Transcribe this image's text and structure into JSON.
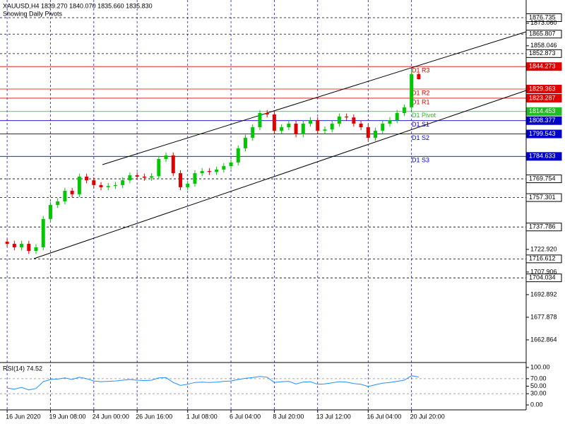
{
  "chart_data": {
    "type": "candlestick",
    "symbol": "XAUUSD,H4",
    "quote": "1839.270 1840.070 1835.660 1835.830",
    "subtitle": "Showing Daily Pivots",
    "categories": [
      "16 Jun 2020",
      null,
      null,
      null,
      null,
      null,
      "19 Jun 08:00",
      null,
      null,
      null,
      null,
      null,
      "24 Jun 00:00",
      null,
      null,
      null,
      null,
      null,
      "26 Jun 16:00",
      null,
      null,
      null,
      null,
      null,
      null,
      "1 Jul 08:00",
      null,
      null,
      null,
      null,
      null,
      "6 Jul 04:00",
      null,
      null,
      null,
      null,
      null,
      "8 Jul 20:00",
      null,
      null,
      null,
      null,
      null,
      "13 Jul 12:00",
      null,
      null,
      null,
      null,
      null,
      null,
      "16 Jul 04:00",
      null,
      null,
      null,
      null,
      null,
      "20 Jul 20:00",
      null
    ],
    "ohlc": [
      [
        1728.0,
        1730.0,
        1724.6,
        1726.6
      ],
      [
        1726.6,
        1728.6,
        1722.3,
        1724.3
      ],
      [
        1724.3,
        1728.6,
        1722.3,
        1726.6
      ],
      [
        1726.6,
        1728.6,
        1719.9,
        1721.9
      ],
      [
        1721.9,
        1726.3,
        1719.9,
        1724.3
      ],
      [
        1724.3,
        1745.1,
        1722.3,
        1743.1
      ],
      [
        1743.1,
        1754.4,
        1741.1,
        1752.4
      ],
      [
        1752.4,
        1756.8,
        1750.4,
        1754.8
      ],
      [
        1754.8,
        1763.8,
        1752.8,
        1761.8
      ],
      [
        1761.8,
        1763.8,
        1757.5,
        1759.5
      ],
      [
        1759.5,
        1773.2,
        1757.5,
        1771.2
      ],
      [
        1771.2,
        1773.2,
        1766.8,
        1768.8
      ],
      [
        1768.8,
        1770.8,
        1763.6,
        1765.6
      ],
      [
        1765.6,
        1767.6,
        1762.2,
        1764.2
      ],
      [
        1764.2,
        1767.0,
        1762.2,
        1765.0
      ],
      [
        1765.0,
        1767.6,
        1763.0,
        1765.6
      ],
      [
        1765.6,
        1770.8,
        1763.6,
        1768.8
      ],
      [
        1768.8,
        1774.1,
        1766.8,
        1772.1
      ],
      [
        1772.1,
        1774.1,
        1769.2,
        1771.2
      ],
      [
        1771.2,
        1773.2,
        1768.5,
        1770.5
      ],
      [
        1770.5,
        1773.5,
        1768.5,
        1771.5
      ],
      [
        1771.5,
        1784.9,
        1769.5,
        1782.9
      ],
      [
        1782.9,
        1787.3,
        1780.9,
        1785.3
      ],
      [
        1785.3,
        1787.3,
        1771.5,
        1773.5
      ],
      [
        1773.5,
        1775.5,
        1762.2,
        1764.2
      ],
      [
        1764.2,
        1768.5,
        1762.2,
        1766.5
      ],
      [
        1766.5,
        1775.5,
        1764.5,
        1773.5
      ],
      [
        1773.5,
        1776.9,
        1771.5,
        1774.9
      ],
      [
        1774.9,
        1776.9,
        1772.3,
        1774.3
      ],
      [
        1774.3,
        1777.9,
        1772.3,
        1775.9
      ],
      [
        1775.9,
        1780.2,
        1773.9,
        1778.2
      ],
      [
        1778.2,
        1782.6,
        1776.2,
        1780.6
      ],
      [
        1780.6,
        1792.0,
        1778.6,
        1790.0
      ],
      [
        1790.0,
        1799.0,
        1788.0,
        1797.0
      ],
      [
        1797.0,
        1806.0,
        1795.0,
        1804.0
      ],
      [
        1804.0,
        1815.4,
        1802.0,
        1813.4
      ],
      [
        1813.4,
        1815.4,
        1810.5,
        1812.5
      ],
      [
        1812.5,
        1814.5,
        1799.7,
        1801.7
      ],
      [
        1801.7,
        1806.0,
        1799.7,
        1804.0
      ],
      [
        1804.0,
        1808.4,
        1802.0,
        1806.4
      ],
      [
        1806.4,
        1808.4,
        1797.3,
        1799.3
      ],
      [
        1799.3,
        1808.4,
        1797.3,
        1806.4
      ],
      [
        1806.4,
        1810.7,
        1804.4,
        1808.7
      ],
      [
        1808.7,
        1810.7,
        1799.7,
        1801.7
      ],
      [
        1801.7,
        1804.5,
        1799.7,
        1802.5
      ],
      [
        1802.5,
        1808.4,
        1800.5,
        1806.4
      ],
      [
        1806.4,
        1813.1,
        1804.4,
        1811.1
      ],
      [
        1811.1,
        1813.1,
        1808.5,
        1810.5
      ],
      [
        1810.5,
        1812.5,
        1804.4,
        1806.4
      ],
      [
        1806.4,
        1808.4,
        1802.0,
        1804.0
      ],
      [
        1804.0,
        1806.0,
        1795.0,
        1797.0
      ],
      [
        1797.0,
        1803.7,
        1795.0,
        1801.7
      ],
      [
        1801.7,
        1808.4,
        1799.7,
        1806.4
      ],
      [
        1806.4,
        1810.7,
        1804.4,
        1808.7
      ],
      [
        1808.7,
        1815.4,
        1806.7,
        1813.4
      ],
      [
        1813.4,
        1819.2,
        1811.4,
        1817.2
      ],
      [
        1817.2,
        1842.5,
        1815.2,
        1839.3
      ],
      [
        1839.27,
        1840.07,
        1835.66,
        1835.83
      ]
    ],
    "up_color": "#00c800",
    "down_color": "#e00000",
    "ylim": [
      1648.3,
      1886.1
    ],
    "yticks": [
      {
        "value": 1873.06,
        "label": "1873.060"
      },
      1858.046,
      {
        "value": 1722.92,
        "label": "1722.920"
      },
      1707.906,
      1692.892,
      1677.878,
      1662.864
    ],
    "levels": [
      {
        "value": 1876.735,
        "color": "#000000"
      },
      {
        "value": 1865.807,
        "color": "#000000"
      },
      {
        "value": 1852.873,
        "color": "#000000"
      },
      {
        "value": 1844.273,
        "color": "#e00000",
        "name": "D1 R3"
      },
      {
        "value": 1829.363,
        "color": "#e00000",
        "name": "D1 R2"
      },
      {
        "value": 1823.287,
        "color": "#e00000",
        "name": "D1 R1"
      },
      {
        "value": 1814.453,
        "color": "#22bb22",
        "name": "D1 Pivot"
      },
      {
        "value": 1808.377,
        "color": "#0000c8",
        "name": "D1 S1"
      },
      {
        "value": 1799.543,
        "color": "#0000c8",
        "name": "D1 S2"
      },
      {
        "value": 1784.633,
        "color": "#0000c8",
        "name": "D1 S3"
      },
      {
        "value": 1769.754,
        "color": "#000000"
      },
      {
        "value": 1757.301,
        "color": "#000000"
      },
      {
        "value": 1737.786,
        "color": "#000000"
      },
      {
        "value": 1716.612,
        "color": "#000000"
      },
      {
        "value": 1704.034,
        "color": "#000000"
      }
    ],
    "rsi": {
      "title": "RSI(14) 74.52",
      "color": "#1e90ff",
      "ylim": [
        -13.2,
        111.3
      ],
      "yticks": [
        {
          "value": 100,
          "label": "100.00"
        },
        {
          "value": 70,
          "label": "70.00"
        },
        {
          "value": 50,
          "label": "50.00"
        },
        {
          "value": 30,
          "label": "30.00"
        },
        {
          "value": 0,
          "label": "0.00"
        }
      ],
      "values": [
        45,
        42,
        47,
        40,
        44,
        62,
        68,
        69,
        72,
        68,
        74,
        70,
        64,
        62,
        63,
        64,
        66,
        68,
        66,
        65,
        66,
        72,
        73,
        60,
        52,
        55,
        60,
        61,
        60,
        61,
        63,
        64,
        68,
        71,
        73,
        76,
        74,
        60,
        62,
        63,
        56,
        61,
        62,
        55,
        56,
        59,
        62,
        61,
        57,
        55,
        49,
        54,
        58,
        60,
        63,
        66,
        78,
        74.52
      ]
    }
  }
}
